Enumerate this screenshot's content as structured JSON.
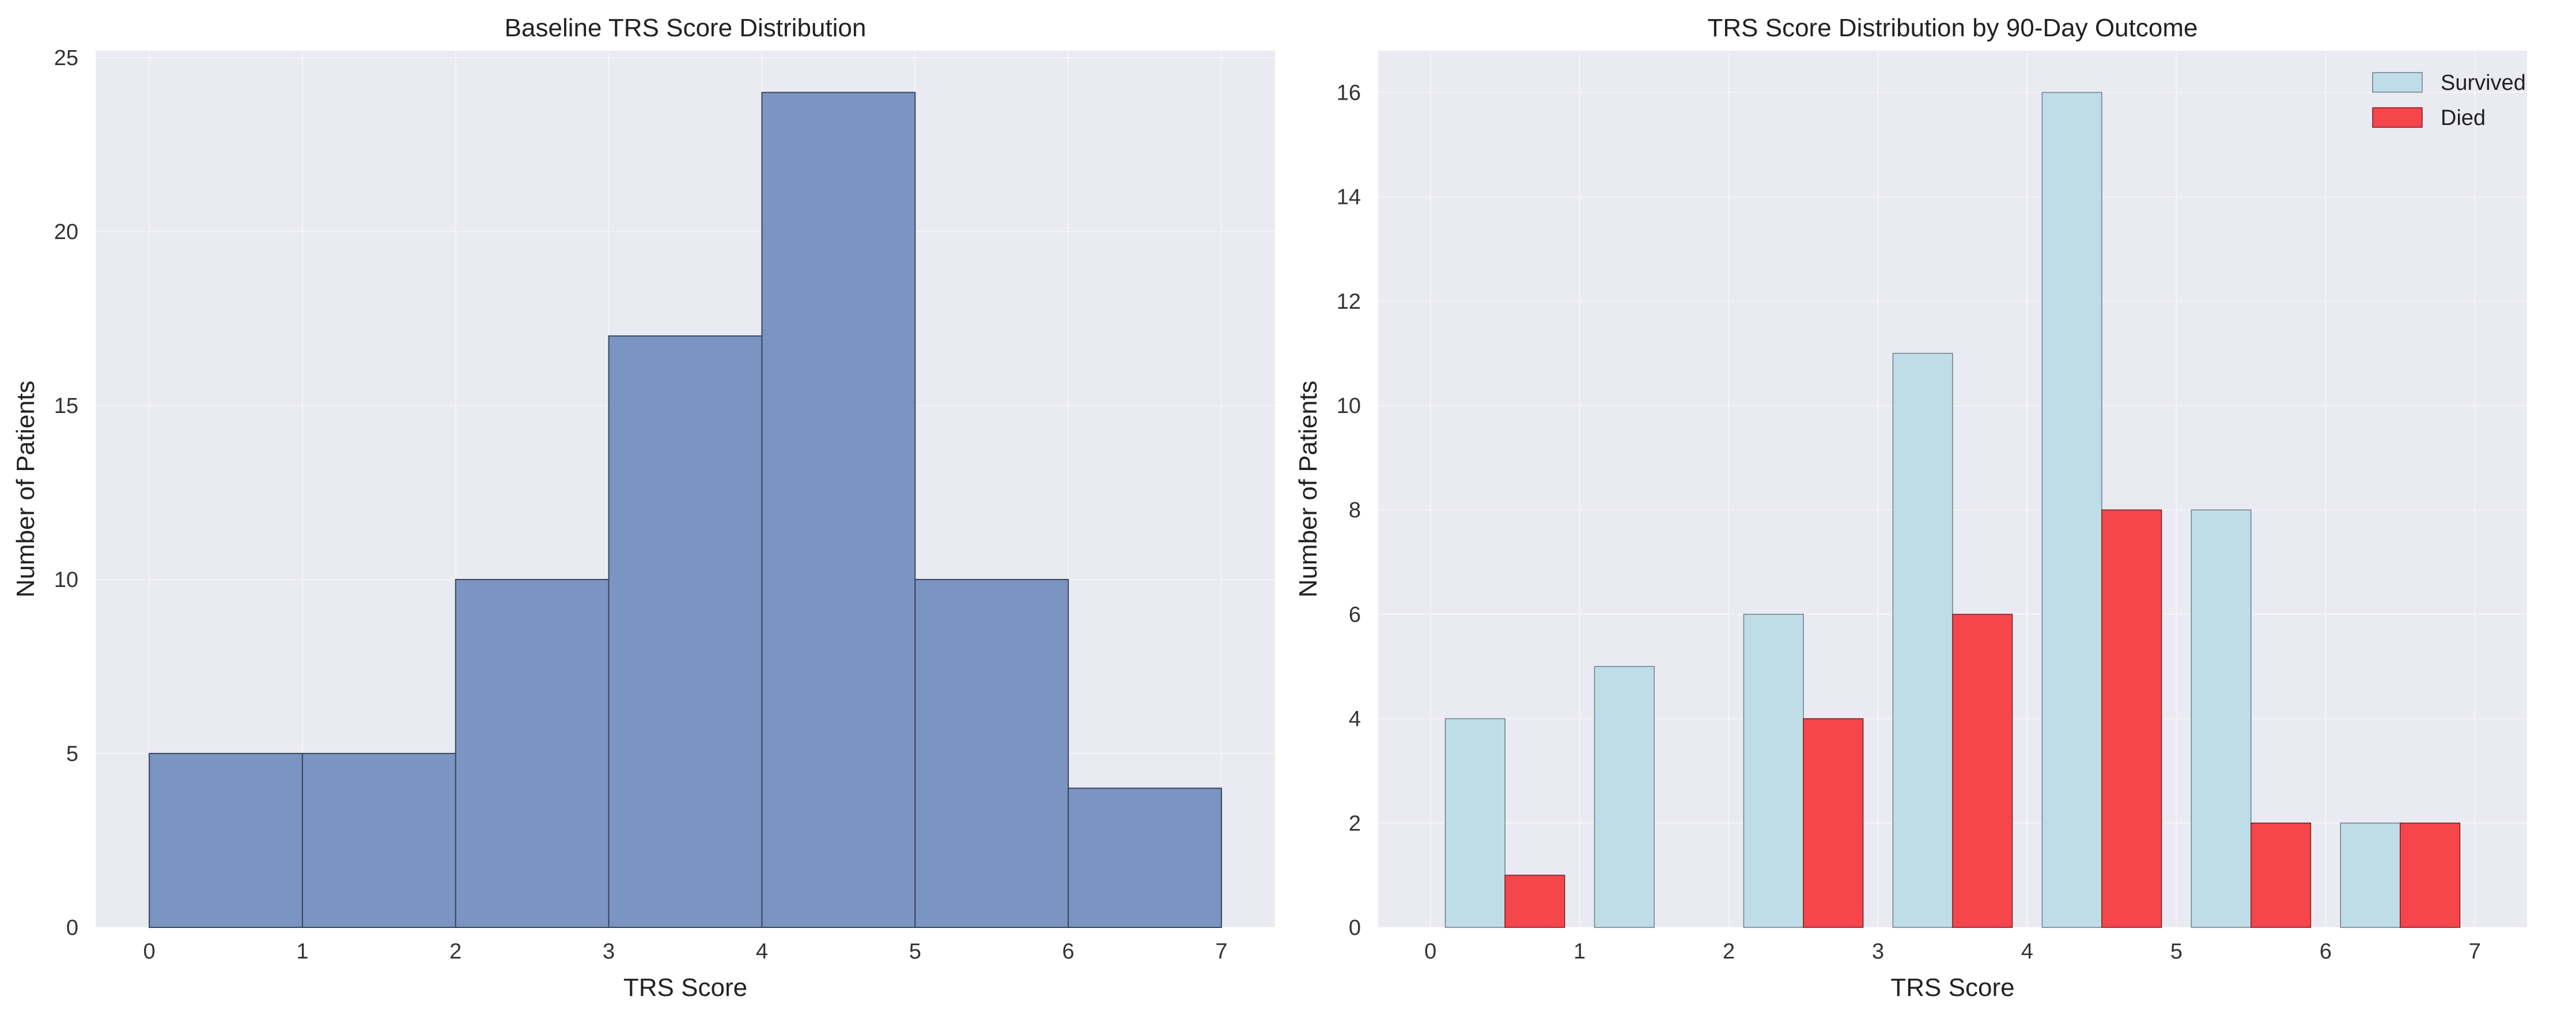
{
  "chart_data": [
    {
      "type": "bar",
      "title": "Baseline TRS Score Distribution",
      "xlabel": "TRS Score",
      "ylabel": "Number of Patients",
      "xlim": [
        -0.35,
        7.35
      ],
      "ylim": [
        0,
        25.2
      ],
      "xticks": [
        0,
        1,
        2,
        3,
        4,
        5,
        6,
        7
      ],
      "yticks": [
        0,
        5,
        10,
        15,
        20,
        25
      ],
      "grid": true,
      "bin_edges": [
        0,
        1,
        2,
        3,
        4,
        5,
        6,
        7
      ],
      "values": [
        5,
        5,
        10,
        17,
        24,
        10,
        4
      ],
      "colors": {
        "bar": "#7b95c2",
        "edge": "#3a475e"
      }
    },
    {
      "type": "bar",
      "title": "TRS Score Distribution by 90-Day Outcome",
      "xlabel": "TRS Score",
      "ylabel": "Number of Patients",
      "xlim": [
        -0.35,
        7.35
      ],
      "ylim": [
        0,
        16.8
      ],
      "xticks": [
        0,
        1,
        2,
        3,
        4,
        5,
        6,
        7
      ],
      "yticks": [
        0,
        2,
        4,
        6,
        8,
        10,
        12,
        14,
        16
      ],
      "grid": true,
      "legend_position": "top-right",
      "bin_edges": [
        0,
        1,
        2,
        3,
        4,
        5,
        6,
        7
      ],
      "series": [
        {
          "name": "Survived",
          "values": [
            4,
            5,
            6,
            11,
            16,
            8,
            2
          ],
          "color": "#bfdde7",
          "edge": "#6e7f86"
        },
        {
          "name": "Died",
          "values": [
            1,
            0,
            4,
            6,
            8,
            2,
            2
          ],
          "color": "#f5464b",
          "edge": "#7a1d20"
        }
      ]
    }
  ]
}
